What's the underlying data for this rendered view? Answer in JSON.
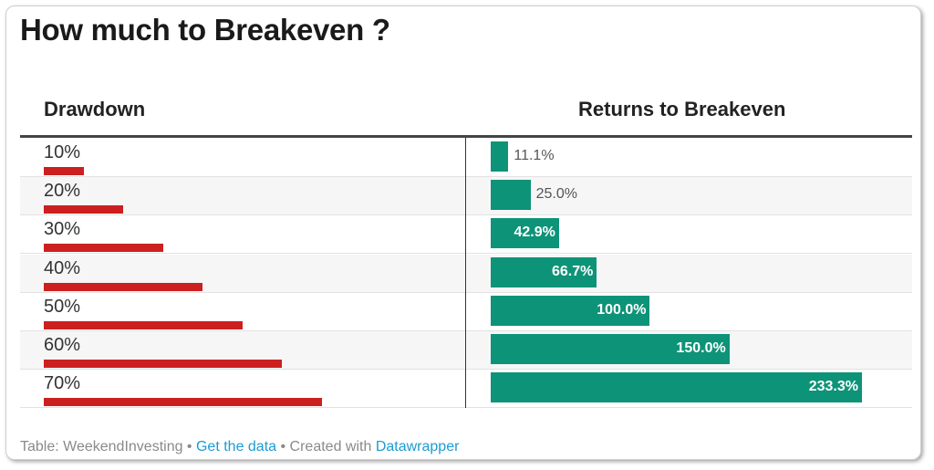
{
  "title": "How much to Breakeven ?",
  "columns": {
    "left": "Drawdown",
    "right": "Returns to Breakeven"
  },
  "footer": {
    "source": "Table: WeekendInvesting",
    "sep1": " • ",
    "get_data": "Get the data",
    "sep2": " • Created with ",
    "tool": "Datawrapper"
  },
  "colors": {
    "drawdown_bar": "#cc2020",
    "return_bar": "#0d9378",
    "link": "#1d9bd1"
  },
  "chart_data": {
    "type": "table",
    "title": "How much to Breakeven ?",
    "columns": [
      "Drawdown",
      "Returns to Breakeven"
    ],
    "rows": [
      {
        "drawdown_label": "10%",
        "drawdown": 10,
        "return_label": "11.1%",
        "return": 11.1
      },
      {
        "drawdown_label": "20%",
        "drawdown": 20,
        "return_label": "25.0%",
        "return": 25.0
      },
      {
        "drawdown_label": "30%",
        "drawdown": 30,
        "return_label": "42.9%",
        "return": 42.9
      },
      {
        "drawdown_label": "40%",
        "drawdown": 40,
        "return_label": "66.7%",
        "return": 66.7
      },
      {
        "drawdown_label": "50%",
        "drawdown": 50,
        "return_label": "100.0%",
        "return": 100.0
      },
      {
        "drawdown_label": "60%",
        "drawdown": 60,
        "return_label": "150.0%",
        "return": 150.0
      },
      {
        "drawdown_label": "70%",
        "drawdown": 70,
        "return_label": "233.3%",
        "return": 233.3
      }
    ],
    "drawdown_max": 70,
    "return_max": 233.3
  }
}
